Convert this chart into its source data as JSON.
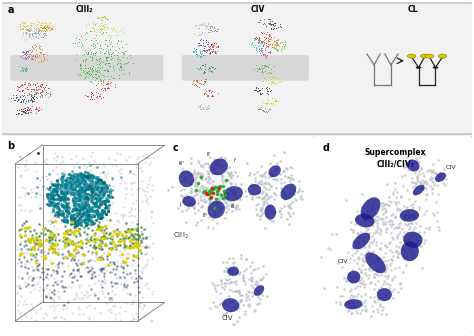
{
  "figure_width": 4.74,
  "figure_height": 3.36,
  "dpi": 100,
  "background_color": "#ffffff",
  "panel_a_bg": "#f0f0f0",
  "panel_a_border": "#aaaaaa",
  "ciii2_title": "CIII₂",
  "civ_title": "CIV",
  "cl_title": "CL",
  "supercomplex_title1": "Supercomplex",
  "supercomplex_title2": "CIII₂/CIV₂",
  "label_a": "a",
  "label_b": "b",
  "label_c": "c",
  "label_d": "d",
  "blue_density": "#1a1a8c",
  "dot_gray": "#b8b8cc",
  "green_dot": "#22aa22",
  "red_dot": "#aa2222"
}
